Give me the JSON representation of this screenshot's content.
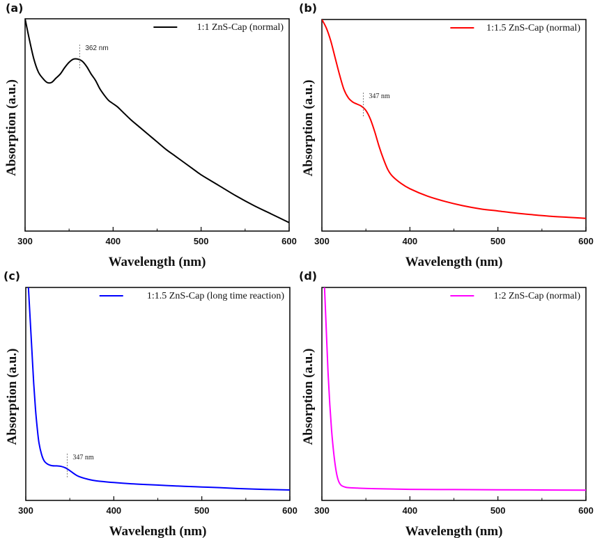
{
  "chart_data": [
    {
      "type": "line",
      "panel_label": "(a)",
      "xlabel": "Wavelength (nm)",
      "ylabel": "Absorption (a.u.)",
      "xlim": [
        300,
        600
      ],
      "ylim": [
        0,
        1
      ],
      "xticks": [
        300,
        400,
        500,
        600
      ],
      "xminor": [
        350,
        450,
        550
      ],
      "x_tick_labels": [
        "300",
        "400",
        "500",
        "600"
      ],
      "grid": false,
      "legend_position": "top-right",
      "series": [
        {
          "name": "1:1    ZnS-Cap (normal)",
          "color": "#000000",
          "x": [
            300,
            305,
            310,
            315,
            320,
            325,
            330,
            335,
            340,
            345,
            350,
            355,
            360,
            365,
            370,
            375,
            380,
            385,
            390,
            395,
            400,
            405,
            410,
            420,
            430,
            440,
            450,
            460,
            470,
            480,
            490,
            500,
            520,
            540,
            560,
            580,
            600
          ],
          "y": [
            1.0,
            0.9,
            0.81,
            0.75,
            0.72,
            0.7,
            0.7,
            0.72,
            0.74,
            0.77,
            0.795,
            0.81,
            0.81,
            0.8,
            0.775,
            0.74,
            0.71,
            0.67,
            0.64,
            0.615,
            0.6,
            0.585,
            0.565,
            0.525,
            0.49,
            0.455,
            0.42,
            0.385,
            0.355,
            0.325,
            0.295,
            0.265,
            0.215,
            0.165,
            0.12,
            0.08,
            0.04
          ]
        }
      ],
      "annotations": [
        {
          "text": "362 nm",
          "x": 362,
          "font": "sans"
        }
      ]
    },
    {
      "type": "line",
      "panel_label": "(b)",
      "xlabel": "Wavelength (nm)",
      "ylabel": "Absorption (a.u.)",
      "xlim": [
        300,
        600
      ],
      "ylim": [
        0,
        1
      ],
      "xticks": [
        300,
        400,
        500,
        600
      ],
      "xminor": [
        350,
        450,
        550
      ],
      "x_tick_labels": [
        "300",
        "400",
        "500",
        "600"
      ],
      "grid": false,
      "legend_position": "top-right",
      "series": [
        {
          "name": "1:1.5  ZnS-Cap (normal)",
          "color": "#ff0000",
          "x": [
            300,
            305,
            310,
            315,
            320,
            325,
            330,
            335,
            340,
            345,
            350,
            355,
            360,
            365,
            370,
            375,
            380,
            390,
            400,
            420,
            440,
            460,
            480,
            500,
            520,
            540,
            560,
            580,
            600
          ],
          "y": [
            1.0,
            0.96,
            0.9,
            0.82,
            0.74,
            0.67,
            0.63,
            0.61,
            0.6,
            0.59,
            0.57,
            0.53,
            0.47,
            0.4,
            0.34,
            0.29,
            0.26,
            0.225,
            0.2,
            0.165,
            0.14,
            0.12,
            0.105,
            0.095,
            0.085,
            0.077,
            0.07,
            0.065,
            0.06
          ]
        }
      ],
      "annotations": [
        {
          "text": "347 nm",
          "x": 347,
          "font": "serif"
        }
      ]
    },
    {
      "type": "line",
      "panel_label": "(c)",
      "xlabel": "Wavelength (nm)",
      "ylabel": "Absorption (a.u.)",
      "xlim": [
        300,
        600
      ],
      "ylim": [
        0,
        1
      ],
      "xticks": [
        300,
        400,
        500,
        600
      ],
      "xminor": [
        350,
        450,
        550
      ],
      "x_tick_labels": [
        "300",
        "400",
        "500",
        "600"
      ],
      "grid": false,
      "legend_position": "top-right",
      "series": [
        {
          "name": "1:1.5  ZnS-Cap (long time reaction)",
          "color": "#0000ff",
          "x": [
            303,
            305,
            307,
            309,
            311,
            313,
            315,
            318,
            321,
            325,
            330,
            335,
            340,
            345,
            350,
            355,
            360,
            370,
            380,
            400,
            420,
            440,
            460,
            480,
            500,
            520,
            540,
            560,
            580,
            600
          ],
          "y": [
            1.0,
            0.85,
            0.7,
            0.55,
            0.43,
            0.34,
            0.27,
            0.215,
            0.185,
            0.17,
            0.163,
            0.162,
            0.16,
            0.153,
            0.14,
            0.125,
            0.113,
            0.1,
            0.092,
            0.084,
            0.078,
            0.074,
            0.07,
            0.066,
            0.063,
            0.06,
            0.056,
            0.053,
            0.051,
            0.049
          ]
        }
      ],
      "annotations": [
        {
          "text": "347 nm",
          "x": 347,
          "font": "serif"
        }
      ]
    },
    {
      "type": "line",
      "panel_label": "(d)",
      "xlabel": "Wavelength (nm)",
      "ylabel": "Absorption (a.u.)",
      "xlim": [
        300,
        600
      ],
      "ylim": [
        0,
        1
      ],
      "xticks": [
        300,
        400,
        500,
        600
      ],
      "xminor": [
        350,
        450,
        550
      ],
      "x_tick_labels": [
        "300",
        "400",
        "500",
        "600"
      ],
      "grid": false,
      "legend_position": "top-right",
      "series": [
        {
          "name": "1:2    ZnS-Cap (normal)",
          "color": "#ff00ff",
          "x": [
            303,
            305,
            307,
            309,
            311,
            313,
            315,
            317,
            319,
            321,
            323,
            326,
            330,
            340,
            360,
            400,
            450,
            500,
            550,
            600
          ],
          "y": [
            1.0,
            0.8,
            0.6,
            0.45,
            0.33,
            0.24,
            0.17,
            0.12,
            0.09,
            0.075,
            0.068,
            0.063,
            0.06,
            0.058,
            0.055,
            0.052,
            0.051,
            0.05,
            0.049,
            0.048
          ]
        }
      ],
      "annotations": []
    }
  ]
}
